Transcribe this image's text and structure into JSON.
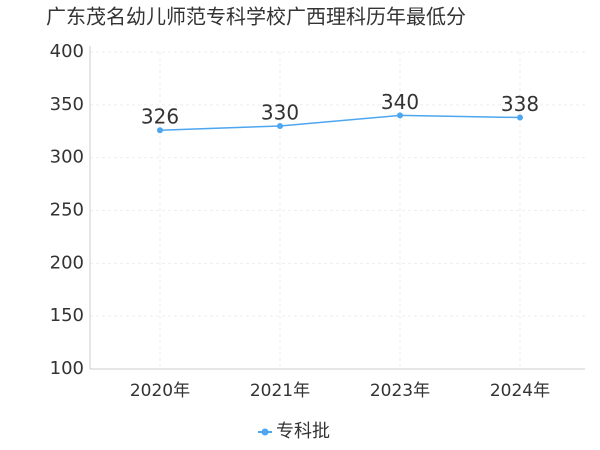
{
  "chart_data": {
    "type": "line",
    "title": "广东茂名幼儿师范专科学校广西理科历年最低分",
    "categories": [
      "2020年",
      "2021年",
      "2023年",
      "2024年"
    ],
    "series": [
      {
        "name": "专科批",
        "color": "#4da6f0",
        "values": [
          326,
          330,
          340,
          338
        ]
      }
    ],
    "ylim": [
      100,
      400
    ],
    "yticks": [
      100,
      150,
      200,
      250,
      300,
      350,
      400
    ],
    "grid": true
  }
}
